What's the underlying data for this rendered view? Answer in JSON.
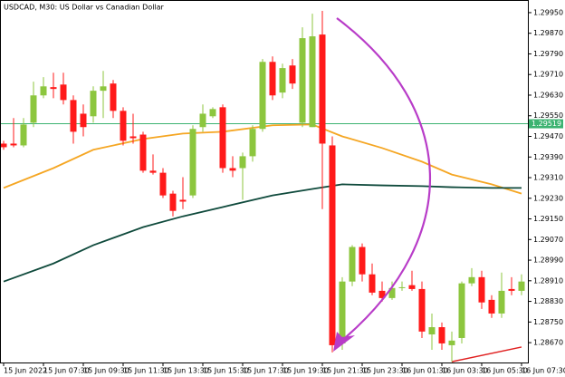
{
  "chart_data": {
    "type": "candlestick",
    "title": "USDCAD, M30:  US Dollar vs Canadian Dollar",
    "categories": [
      "15 Jun 2022",
      null,
      null,
      null,
      "15 Jun 07:30",
      null,
      null,
      null,
      "15 Jun 09:30",
      null,
      null,
      null,
      "15 Jun 11:30",
      null,
      null,
      null,
      "15 Jun 13:30",
      null,
      null,
      null,
      "15 Jun 15:30",
      null,
      null,
      null,
      "15 Jun 17:30",
      null,
      null,
      null,
      "15 Jun 19:30",
      null,
      null,
      null,
      "15 Jun 21:30",
      null,
      null,
      null,
      "15 Jun 23:30",
      null,
      null,
      null,
      "16 Jun 01:30",
      null,
      null,
      null,
      "16 Jun 03:30",
      null,
      null,
      null,
      "16 Jun 05:30",
      null,
      null,
      null,
      "16 Jun 07:30"
    ],
    "open": [
      1.29442,
      1.29442,
      1.29435,
      1.29523,
      1.29629,
      1.29661,
      1.29671,
      1.29611,
      1.29558,
      1.29548,
      1.29647,
      1.29675,
      1.29569,
      1.2947,
      1.29477,
      1.29337,
      1.29329,
      1.29248,
      1.29224,
      1.29241,
      1.29506,
      1.29548,
      1.29583,
      1.29347,
      1.29347,
      1.29393,
      1.29499,
      1.29759,
      1.2964,
      1.29745,
      1.29523,
      1.29506,
      1.29865,
      1.29435,
      1.28667,
      1.28907,
      1.29041,
      1.28935,
      1.28871,
      1.28843,
      1.28882,
      1.28893,
      1.28878,
      1.28702,
      1.2873,
      1.2866,
      1.28688,
      1.289,
      1.28924,
      1.28836,
      1.28783,
      1.28878,
      1.28871
    ],
    "high": [
      1.29453,
      1.29541,
      1.29541,
      1.29682,
      1.297,
      1.29717,
      1.29717,
      1.29629,
      1.29594,
      1.29664,
      1.29724,
      1.29689,
      1.29583,
      1.29558,
      1.29488,
      1.294,
      1.29347,
      1.29259,
      1.29312,
      1.29513,
      1.29594,
      1.29583,
      1.29594,
      1.29393,
      1.29407,
      1.29513,
      1.2977,
      1.2978,
      1.29752,
      1.2977,
      1.29893,
      1.29946,
      1.29957,
      1.2947,
      1.28924,
      1.29048,
      1.29055,
      1.28977,
      1.28907,
      1.28907,
      1.28907,
      1.28949,
      1.28907,
      1.28783,
      1.28748,
      1.28713,
      1.28907,
      1.28959,
      1.28949,
      1.28854,
      1.28942,
      1.28924,
      1.28935
    ],
    "low": [
      1.29418,
      1.29428,
      1.29428,
      1.29506,
      1.29618,
      1.29618,
      1.29594,
      1.29442,
      1.2947,
      1.29523,
      1.29541,
      1.29541,
      1.29435,
      1.29442,
      1.29329,
      1.29322,
      1.29231,
      1.2916,
      1.29188,
      1.29231,
      1.29488,
      1.29541,
      1.29329,
      1.29312,
      1.29224,
      1.29372,
      1.29488,
      1.29611,
      1.29618,
      1.29654,
      1.29506,
      1.29506,
      1.29188,
      1.28632,
      1.28642,
      1.28889,
      1.28907,
      1.28854,
      1.28829,
      1.28836,
      1.28871,
      1.28871,
      1.28688,
      1.28642,
      1.28642,
      1.28596,
      1.28667,
      1.28889,
      1.28801,
      1.28766,
      1.28766,
      1.28854,
      1.28854
    ],
    "close": [
      1.29428,
      1.29435,
      1.29516,
      1.29629,
      1.29664,
      1.29654,
      1.29611,
      1.29488,
      1.29506,
      1.29647,
      1.29664,
      1.29569,
      1.29453,
      1.29463,
      1.29337,
      1.29329,
      1.29241,
      1.29181,
      1.29217,
      1.29499,
      1.29558,
      1.29576,
      1.29347,
      1.29337,
      1.29393,
      1.29499,
      1.29759,
      1.29629,
      1.29735,
      1.29675,
      1.29851,
      1.29858,
      1.29442,
      1.2866,
      1.28907,
      1.29041,
      1.28935,
      1.28864,
      1.28843,
      1.28882,
      1.28885,
      1.28878,
      1.28713,
      1.2873,
      1.28667,
      1.28678,
      1.289,
      1.28924,
      1.28826,
      1.28783,
      1.28871,
      1.28871,
      1.28907
    ],
    "up_color": "#8cc63e",
    "down_color": "#ff1a1a",
    "overlays": [
      {
        "color": "#f5a623",
        "x": [
          0,
          5,
          9,
          14,
          18,
          22,
          27,
          31,
          34,
          38,
          42,
          45,
          49,
          52
        ],
        "values": [
          1.2927,
          1.29347,
          1.29418,
          1.2946,
          1.29481,
          1.29488,
          1.29513,
          1.29516,
          1.2947,
          1.29425,
          1.29372,
          1.29322,
          1.29284,
          1.29248
        ]
      },
      {
        "color": "#0f4a3c",
        "x": [
          0,
          5,
          9,
          14,
          18,
          22,
          27,
          31,
          34,
          38,
          42,
          45,
          49,
          52
        ],
        "values": [
          1.28907,
          1.28977,
          1.29048,
          1.29118,
          1.2916,
          1.29196,
          1.29241,
          1.29266,
          1.29284,
          1.2928,
          1.29277,
          1.29273,
          1.2927,
          1.2927
        ]
      },
      {
        "color": "#e02020",
        "x": [
          45,
          52
        ],
        "values": [
          1.28596,
          1.28653
        ]
      }
    ],
    "price_line": {
      "value": 1.29519,
      "label": "1.29519",
      "color": "#3cb371"
    },
    "ylim": [
      1.28593,
      1.29999
    ],
    "yticks": [
      {
        "value": 1.2995,
        "label": "1.29950"
      },
      {
        "value": 1.2987,
        "label": "1.29870"
      },
      {
        "value": 1.2979,
        "label": "1.29790"
      },
      {
        "value": 1.2971,
        "label": "1.29710"
      },
      {
        "value": 1.2963,
        "label": "1.29630"
      },
      {
        "value": 1.2955,
        "label": "1.29550"
      },
      {
        "value": 1.2947,
        "label": "1.29470"
      },
      {
        "value": 1.2939,
        "label": "1.29390"
      },
      {
        "value": 1.2931,
        "label": "1.29310"
      },
      {
        "value": 1.2923,
        "label": "1.29230"
      },
      {
        "value": 1.2915,
        "label": "1.29150"
      },
      {
        "value": 1.2907,
        "label": "1.29070"
      },
      {
        "value": 1.2899,
        "label": "1.28990"
      },
      {
        "value": 1.2891,
        "label": "1.28910"
      },
      {
        "value": 1.2883,
        "label": "1.28830"
      },
      {
        "value": 1.2875,
        "label": "1.28750"
      },
      {
        "value": 1.2867,
        "label": "1.28670"
      }
    ]
  }
}
